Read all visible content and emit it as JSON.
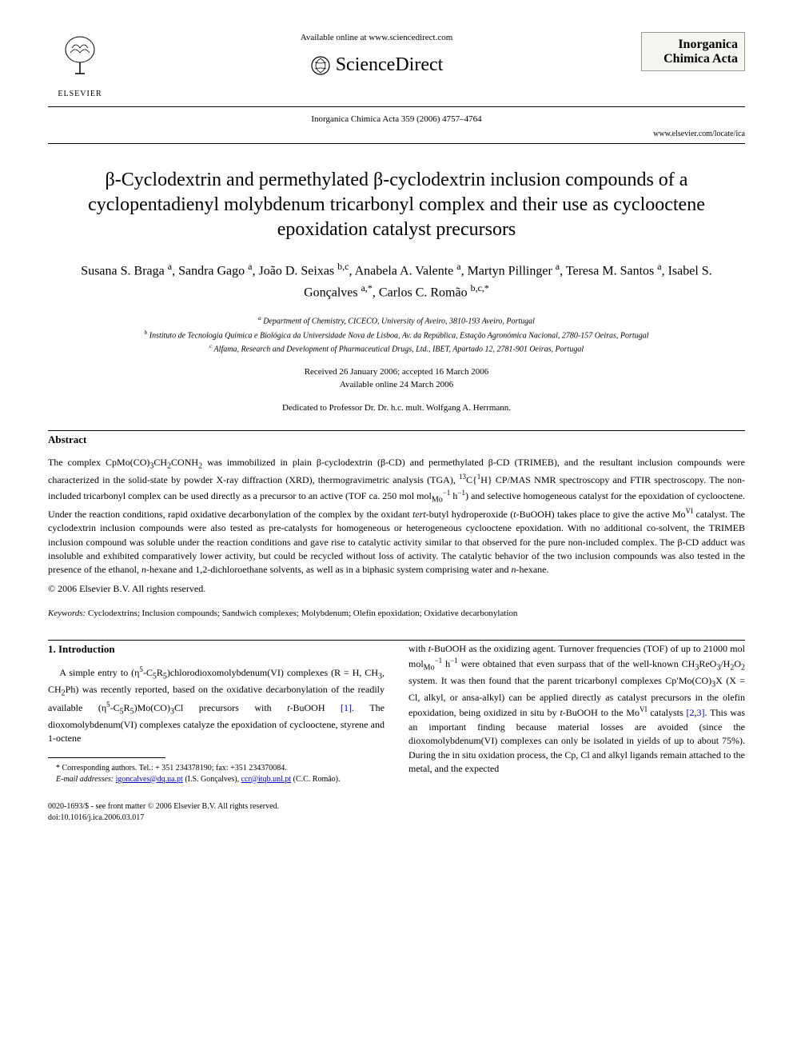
{
  "header": {
    "available_text": "Available online at www.sciencedirect.com",
    "sciencedirect_label": "ScienceDirect",
    "elsevier_label": "ELSEVIER",
    "journal_name_line1": "Inorganica",
    "journal_name_line2": "Chimica Acta",
    "citation": "Inorganica Chimica Acta 359 (2006) 4757–4764",
    "journal_url": "www.elsevier.com/locate/ica"
  },
  "title": "β-Cyclodextrin and permethylated β-cyclodextrin inclusion compounds of a cyclopentadienyl molybdenum tricarbonyl complex and their use as cyclooctene epoxidation catalyst precursors",
  "authors_html": "Susana S. Braga <sup>a</sup>, Sandra Gago <sup>a</sup>, João D. Seixas <sup>b,c</sup>, Anabela A. Valente <sup>a</sup>, Martyn Pillinger <sup>a</sup>, Teresa M. Santos <sup>a</sup>, Isabel S. Gonçalves <sup>a,*</sup>, Carlos C. Romão <sup>b,c,*</sup>",
  "affiliations": [
    "a Department of Chemistry, CICECO, University of Aveiro, 3810-193 Aveiro, Portugal",
    "b Instituto de Tecnologia Química e Biológica da Universidade Nova de Lisboa, Av. da República, Estação Agronómica Nacional, 2780-157 Oeiras, Portugal",
    "c Alfama, Research and Development of Pharmaceutical Drugs, Ltd., IBET, Apartado 12, 2781-901 Oeiras, Portugal"
  ],
  "dates": {
    "received": "Received 26 January 2006; accepted 16 March 2006",
    "online": "Available online 24 March 2006"
  },
  "dedication": "Dedicated to Professor Dr. Dr. h.c. mult. Wolfgang A. Herrmann.",
  "abstract": {
    "heading": "Abstract",
    "body_html": "The complex CpMo(CO)<sub>3</sub>CH<sub>2</sub>CONH<sub>2</sub> was immobilized in plain β-cyclodextrin (β-CD) and permethylated β-CD (TRIMEB), and the resultant inclusion compounds were characterized in the solid-state by powder X-ray diffraction (XRD), thermogravimetric analysis (TGA), <sup>13</sup>C{<sup>1</sup>H} CP/MAS NMR spectroscopy and FTIR spectroscopy. The non-included tricarbonyl complex can be used directly as a precursor to an active (TOF ca. 250 mol mol<sub>Mo</sub><sup>−1</sup> h<sup>−1</sup>) and selective homogeneous catalyst for the epoxidation of cyclooctene. Under the reaction conditions, rapid oxidative decarbonylation of the complex by the oxidant <i>tert</i>-butyl hydroperoxide (<i>t</i>-BuOOH) takes place to give the active Mo<sup>VI</sup> catalyst. The cyclodextrin inclusion compounds were also tested as pre-catalysts for homogeneous or heterogeneous cyclooctene epoxidation. With no additional co-solvent, the TRIMEB inclusion compound was soluble under the reaction conditions and gave rise to catalytic activity similar to that observed for the pure non-included complex. The β-CD adduct was insoluble and exhibited comparatively lower activity, but could be recycled without loss of activity. The catalytic behavior of the two inclusion compounds was also tested in the presence of the ethanol, <i>n</i>-hexane and 1,2-dichloroethane solvents, as well as in a biphasic system comprising water and <i>n</i>-hexane.",
    "copyright": "© 2006 Elsevier B.V. All rights reserved."
  },
  "keywords": {
    "label": "Keywords:",
    "text": "Cyclodextrins; Inclusion compounds; Sandwich complexes; Molybdenum; Olefin epoxidation; Oxidative decarbonylation"
  },
  "intro": {
    "heading": "1. Introduction",
    "col1_html": "A simple entry to (η<sup>5</sup>-C<sub>5</sub>R<sub>5</sub>)chlorodioxomolybdenum(VI) complexes (R = H, CH<sub>3</sub>, CH<sub>2</sub>Ph) was recently reported, based on the oxidative decarbonylation of the readily available (η<sup>5</sup>-C<sub>5</sub>R<sub>5</sub>)Mo(CO)<sub>3</sub>Cl precursors with <i>t</i>-BuOOH <span class=\"ref-link\">[1]</span>. The dioxomolybdenum(VI) complexes catalyze the epoxidation of cyclooctene, styrene and 1-octene",
    "col2_html": "with <i>t</i>-BuOOH as the oxidizing agent. Turnover frequencies (TOF) of up to 21000 mol mol<sub>Mo</sub><sup>−1</sup> h<sup>−1</sup> were obtained that even surpass that of the well-known CH<sub>3</sub>ReO<sub>3</sub>/H<sub>2</sub>O<sub>2</sub> system. It was then found that the parent tricarbonyl complexes Cp′Mo(CO)<sub>3</sub>X (X = Cl, alkyl, or ansa-alkyl) can be applied directly as catalyst precursors in the olefin epoxidation, being oxidized in situ by <i>t</i>-BuOOH to the Mo<sup>VI</sup> catalysts <span class=\"ref-link\">[2,3]</span>. This was an important finding because material losses are avoided (since the dioxomolybdenum(VI) complexes can only be isolated in yields of up to about 75%). During the in situ oxidation process, the Cp, Cl and alkyl ligands remain attached to the metal, and the expected"
  },
  "footnote": {
    "corr": "* Corresponding authors. Tel.: + 351 234378190; fax: +351 234370084.",
    "email_label": "E-mail addresses:",
    "email1": "igoncalves@dq.ua.pt",
    "email1_name": "(I.S. Gonçalves),",
    "email2": "ccr@itqb.unl.pt",
    "email2_name": "(C.C. Romão)."
  },
  "footer": {
    "issn": "0020-1693/$ - see front matter © 2006 Elsevier B.V. All rights reserved.",
    "doi": "doi:10.1016/j.ica.2006.03.017"
  },
  "colors": {
    "text": "#000000",
    "link": "#0000cc",
    "bg": "#ffffff",
    "box_bg": "#f5f5f0",
    "box_border": "#999999"
  }
}
